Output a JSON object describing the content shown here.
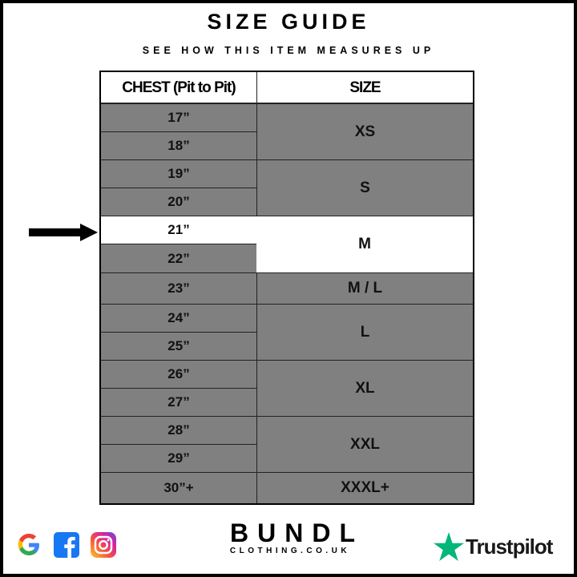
{
  "header": {
    "title": "SIZE GUIDE",
    "subtitle": "SEE HOW THIS ITEM MEASURES UP"
  },
  "table": {
    "columns": [
      "CHEST (Pit to Pit)",
      "SIZE"
    ],
    "chest_rows": [
      "17”",
      "18”",
      "19”",
      "20”",
      "21”",
      "22”",
      "23”",
      "24”",
      "25”",
      "26”",
      "27”",
      "28”",
      "29”",
      "30”+"
    ],
    "sizes": [
      {
        "label": "XS",
        "rows": [
          0,
          1
        ]
      },
      {
        "label": "S",
        "rows": [
          2,
          3
        ]
      },
      {
        "label": "M",
        "rows": [
          4,
          5
        ]
      },
      {
        "label": "M / L",
        "rows": [
          6
        ]
      },
      {
        "label": "L",
        "rows": [
          7,
          8
        ]
      },
      {
        "label": "XL",
        "rows": [
          9,
          10
        ]
      },
      {
        "label": "XXL",
        "rows": [
          11,
          12
        ]
      },
      {
        "label": "XXXL+",
        "rows": [
          13
        ]
      }
    ],
    "highlighted_chest": "21”",
    "highlighted_size": "M"
  },
  "footer": {
    "social_icons": [
      "google-icon",
      "facebook-icon",
      "instagram-icon"
    ],
    "brand": "BUNDL",
    "brand_sub": "CLOTHING.CO.UK",
    "review": "Trustpilot"
  },
  "colors": {
    "cell_gray": "#808080",
    "highlight": "#ffffff",
    "trustpilot_green": "#00b67a"
  }
}
